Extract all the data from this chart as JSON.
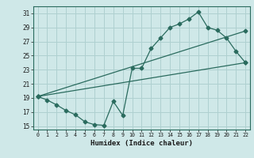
{
  "xlabel": "Humidex (Indice chaleur)",
  "xlim": [
    -0.5,
    22.5
  ],
  "ylim": [
    14.5,
    32
  ],
  "yticks": [
    15,
    17,
    19,
    21,
    23,
    25,
    27,
    29,
    31
  ],
  "xticks": [
    0,
    1,
    2,
    3,
    4,
    5,
    6,
    7,
    8,
    9,
    10,
    11,
    12,
    13,
    14,
    15,
    16,
    17,
    18,
    19,
    20,
    21,
    22
  ],
  "bg_color": "#cfe8e8",
  "grid_color": "#afd0d0",
  "line_color": "#2a6b5e",
  "line1_x": [
    0,
    1,
    2,
    3,
    4,
    5,
    6,
    7,
    8,
    9,
    10,
    11,
    12,
    13,
    14,
    15,
    16,
    17,
    18,
    19,
    20,
    21,
    22
  ],
  "line1_y": [
    19.2,
    18.7,
    18.0,
    17.2,
    16.6,
    15.6,
    15.2,
    15.1,
    18.5,
    16.5,
    23.2,
    23.2,
    26.0,
    27.5,
    29.0,
    29.5,
    30.2,
    31.2,
    29.0,
    28.6,
    27.5,
    25.6,
    24.0
  ],
  "line2_x": [
    0,
    22
  ],
  "line2_y": [
    19.2,
    28.5
  ],
  "line3_x": [
    0,
    22
  ],
  "line3_y": [
    19.2,
    24.0
  ]
}
